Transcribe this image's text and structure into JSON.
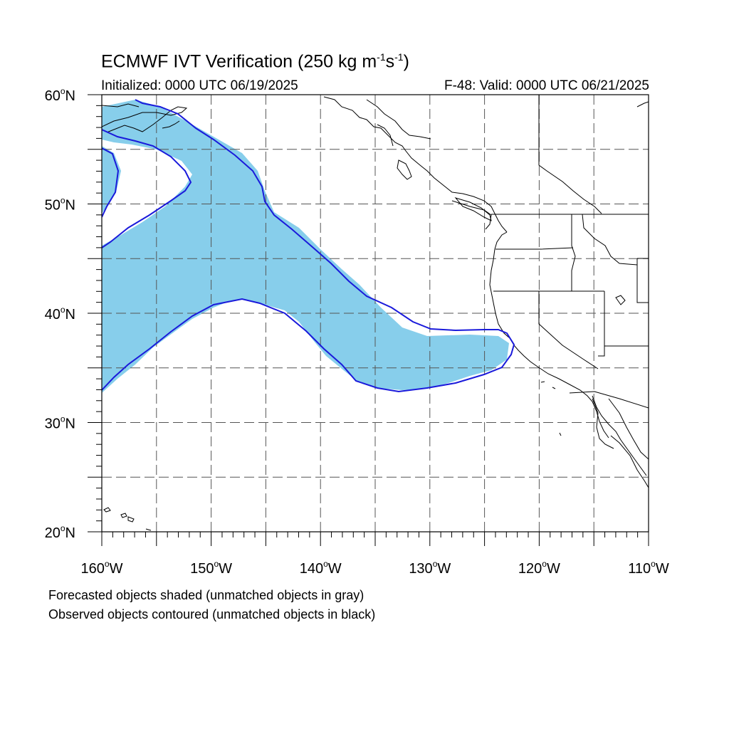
{
  "title": {
    "main": "ECMWF IVT Verification (250 kg m",
    "sup1": "-1",
    "mid": "s",
    "sup2": "-1",
    "end": ")"
  },
  "subtitle": {
    "initialized": "Initialized: 0000 UTC 06/19/2025",
    "valid": "F-48: Valid: 0000 UTC 06/21/2025"
  },
  "axes": {
    "lat_labels": [
      {
        "value": 60,
        "label": "60",
        "hemi": "N"
      },
      {
        "value": 50,
        "label": "50",
        "hemi": "N"
      },
      {
        "value": 40,
        "label": "40",
        "hemi": "N"
      },
      {
        "value": 30,
        "label": "30",
        "hemi": "N"
      },
      {
        "value": 20,
        "label": "20",
        "hemi": "N"
      }
    ],
    "lon_labels": [
      {
        "value": -160,
        "label": "160",
        "hemi": "W"
      },
      {
        "value": -150,
        "label": "150",
        "hemi": "W"
      },
      {
        "value": -140,
        "label": "140",
        "hemi": "W"
      },
      {
        "value": -130,
        "label": "130",
        "hemi": "W"
      },
      {
        "value": -120,
        "label": "120",
        "hemi": "W"
      },
      {
        "value": -110,
        "label": "110",
        "hemi": "W"
      }
    ],
    "lat_range": [
      20,
      60
    ],
    "lon_range": [
      -160,
      -110
    ],
    "grid_dashed": true
  },
  "colors": {
    "forecast_fill": "#87ceeb",
    "observed_contour": "#1a1adb",
    "coast": "#000000",
    "grid": "#555555"
  },
  "legend": {
    "line1": "Forecasted objects shaded (unmatched objects in gray)",
    "line2": "Observed objects contoured (unmatched objects in black)"
  }
}
